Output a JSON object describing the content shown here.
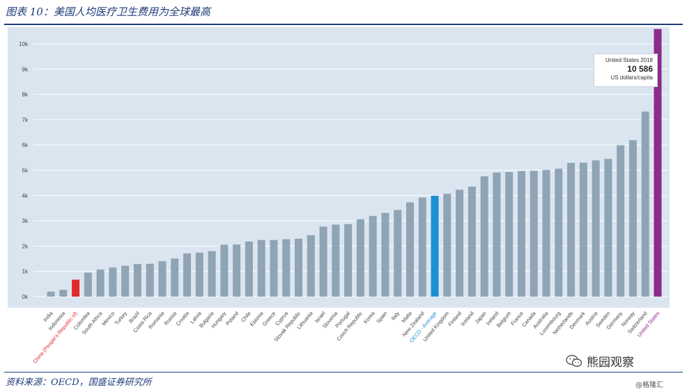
{
  "figure_title": "图表 10：美国人均医疗卫生费用为全球最高",
  "source_note": "资料来源：OECD，国盛证券研究所",
  "watermark": {
    "main": "熊园观察",
    "sub": "@格隆汇",
    "icon": "wechat-icon"
  },
  "tooltip": {
    "line1": "United States 2018",
    "value": "10 586",
    "unit": "US dollars/capita"
  },
  "colors": {
    "default_bar": "#8fa4b4",
    "china": "#e02b2b",
    "oecd_average": "#1e8fd6",
    "united_states": "#8b2b8a",
    "panel_bg": "#dae5ef",
    "grid": "#ffffff",
    "title": "#1f3d7a"
  },
  "chart_data": {
    "type": "bar",
    "title": "",
    "xlabel": "",
    "ylabel": "",
    "ylim": [
      0,
      10586
    ],
    "ytick_labels": [
      "0k",
      "1k",
      "2k",
      "3k",
      "4k",
      "5k",
      "6k",
      "7k",
      "8k",
      "9k",
      "10k"
    ],
    "grid": true,
    "categories": [
      "India",
      "Indonesia",
      "China (People's Republic of)",
      "Colombia",
      "South Africa",
      "Mexico",
      "Turkey",
      "Brazil",
      "Costa Rica",
      "Romania",
      "Russia",
      "Croatia",
      "Latvia",
      "Bulgaria",
      "Hungary",
      "Poland",
      "Chile",
      "Estonia",
      "Greece",
      "Cyprus",
      "Slovak Republic",
      "Lithuania",
      "Israel",
      "Slovenia",
      "Portugal",
      "Czech Republic",
      "Korea",
      "Spain",
      "Italy",
      "Malta",
      "New Zealand",
      "OECD - Average",
      "United Kingdom",
      "Finland",
      "Iceland",
      "Japan",
      "Ireland",
      "Belgium",
      "France",
      "Canada",
      "Australia",
      "Luxembourg",
      "Netherlands",
      "Denmark",
      "Austria",
      "Sweden",
      "Germany",
      "Norway",
      "Switzerland",
      "United States"
    ],
    "values": [
      200,
      270,
      670,
      950,
      1070,
      1150,
      1220,
      1290,
      1300,
      1400,
      1510,
      1710,
      1740,
      1800,
      2050,
      2060,
      2180,
      2240,
      2240,
      2270,
      2290,
      2430,
      2770,
      2850,
      2870,
      3060,
      3190,
      3310,
      3430,
      3730,
      3920,
      3990,
      4070,
      4230,
      4350,
      4760,
      4910,
      4930,
      4970,
      4980,
      5010,
      5060,
      5290,
      5300,
      5390,
      5450,
      5990,
      6190,
      7320,
      10586
    ],
    "highlight": {
      "China (People's Republic of)": "china",
      "OECD - Average": "oecd_average",
      "United States": "united_states"
    }
  }
}
